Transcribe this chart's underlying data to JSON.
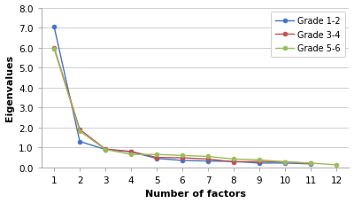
{
  "x": [
    1,
    2,
    3,
    4,
    5,
    6,
    7,
    8,
    9,
    10,
    11,
    12
  ],
  "grade_12": [
    7.05,
    1.3,
    0.9,
    0.78,
    0.45,
    0.35,
    0.32,
    0.3,
    0.22,
    0.22,
    0.18,
    null
  ],
  "grade_34": [
    6.0,
    1.9,
    0.92,
    0.8,
    0.5,
    0.48,
    0.42,
    0.28,
    0.3,
    0.28,
    0.2,
    null
  ],
  "grade_56": [
    5.95,
    1.82,
    0.9,
    0.65,
    0.65,
    0.6,
    0.55,
    0.42,
    0.38,
    0.28,
    0.22,
    0.13
  ],
  "colors": [
    "#4472C4",
    "#C0504D",
    "#9BBB59"
  ],
  "markers": [
    "o",
    "o",
    "o"
  ],
  "labels": [
    "Grade 1-2",
    "Grade 3-4",
    "Grade 5-6"
  ],
  "xlabel": "Number of factors",
  "ylabel": "Eigenvalues",
  "ylim": [
    0.0,
    8.0
  ],
  "yticks": [
    0.0,
    1.0,
    2.0,
    3.0,
    4.0,
    5.0,
    6.0,
    7.0,
    8.0
  ],
  "xticks": [
    1,
    2,
    3,
    4,
    5,
    6,
    7,
    8,
    9,
    10,
    11,
    12
  ],
  "background_color": "#ffffff",
  "grid_color": "#c8c8c8"
}
